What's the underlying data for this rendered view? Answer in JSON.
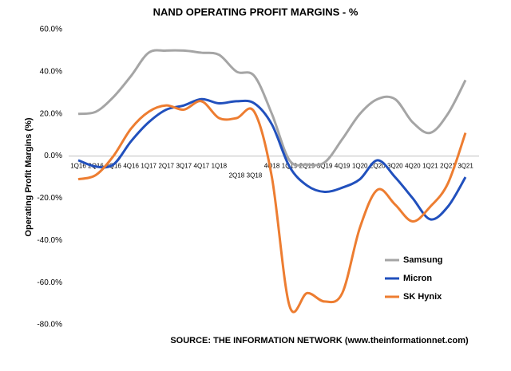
{
  "chart_data": {
    "type": "line",
    "title": "NAND OPERATING PROFIT MARGINS - %",
    "y_label": "Operating Profit Margins (%)",
    "source": "SOURCE: THE INFORMATION NETWORK (www.theinformationnet.com)",
    "categories": [
      "1Q16",
      "2Q16",
      "3Q16",
      "4Q16",
      "1Q17",
      "2Q17",
      "3Q17",
      "4Q17",
      "1Q18",
      "2Q18",
      "3Q18",
      "4Q18",
      "1Q19",
      "2Q19",
      "3Q19",
      "4Q19",
      "1Q20",
      "2Q20",
      "3Q20",
      "4Q20",
      "1Q21",
      "2Q21",
      "3Q21"
    ],
    "series": [
      {
        "name": "Samsung",
        "color": "#a5a5a5",
        "values": [
          20,
          21,
          28,
          38,
          49,
          50,
          50,
          49,
          48,
          40,
          38,
          20,
          -2,
          -4,
          -3,
          8,
          20,
          27,
          27,
          16,
          11,
          20,
          36
        ]
      },
      {
        "name": "Micron",
        "color": "#2150bd",
        "values": [
          -2,
          -5,
          -4,
          7,
          16,
          22,
          24,
          27,
          25,
          26,
          25,
          15,
          -5,
          -14,
          -17,
          -15,
          -11,
          -2,
          -10,
          -20,
          -30,
          -24,
          -10
        ]
      },
      {
        "name": "SK Hynix",
        "color": "#ed7d31",
        "values": [
          -11,
          -9,
          0,
          13,
          21,
          24,
          22,
          26,
          18,
          18,
          21,
          -10,
          -71,
          -65,
          -69,
          -65,
          -34,
          -16,
          -23,
          -31,
          -24,
          -13,
          11
        ]
      }
    ],
    "ylim": [
      -80,
      60
    ],
    "yticks": [
      {
        "value": 60,
        "label": "60.0%"
      },
      {
        "value": 40,
        "label": "40.0%"
      },
      {
        "value": 20,
        "label": "20.0%"
      },
      {
        "value": 0,
        "label": "0.0%"
      },
      {
        "value": -20,
        "label": "-20.0%"
      },
      {
        "value": -40,
        "label": "-40.0%"
      },
      {
        "value": -60,
        "label": "-60.0%"
      },
      {
        "value": -80,
        "label": "-80.0%"
      }
    ],
    "grid": false,
    "legend": "lower right"
  }
}
